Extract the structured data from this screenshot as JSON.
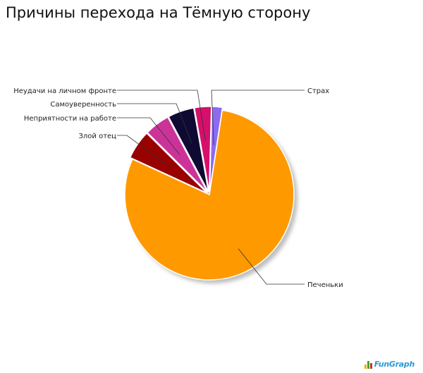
{
  "chart_data": {
    "type": "pie",
    "title": "Причины перехода на Тёмную сторону",
    "slices": [
      {
        "label": "Страх",
        "value": 2,
        "color": "#8C6AF2"
      },
      {
        "label": "Печеньки",
        "value": 79,
        "color": "#FF9900"
      },
      {
        "label": "Злой отец",
        "value": 5.5,
        "color": "#990000"
      },
      {
        "label": "Неприятности на работе",
        "value": 4.8,
        "color": "#CC3399"
      },
      {
        "label": "Самоуверенность",
        "value": 5,
        "color": "#0F0A33"
      },
      {
        "label": "Неудачи на личном фронте",
        "value": 3.2,
        "color": "#D60F6B"
      }
    ]
  },
  "watermark": "FunGraph"
}
